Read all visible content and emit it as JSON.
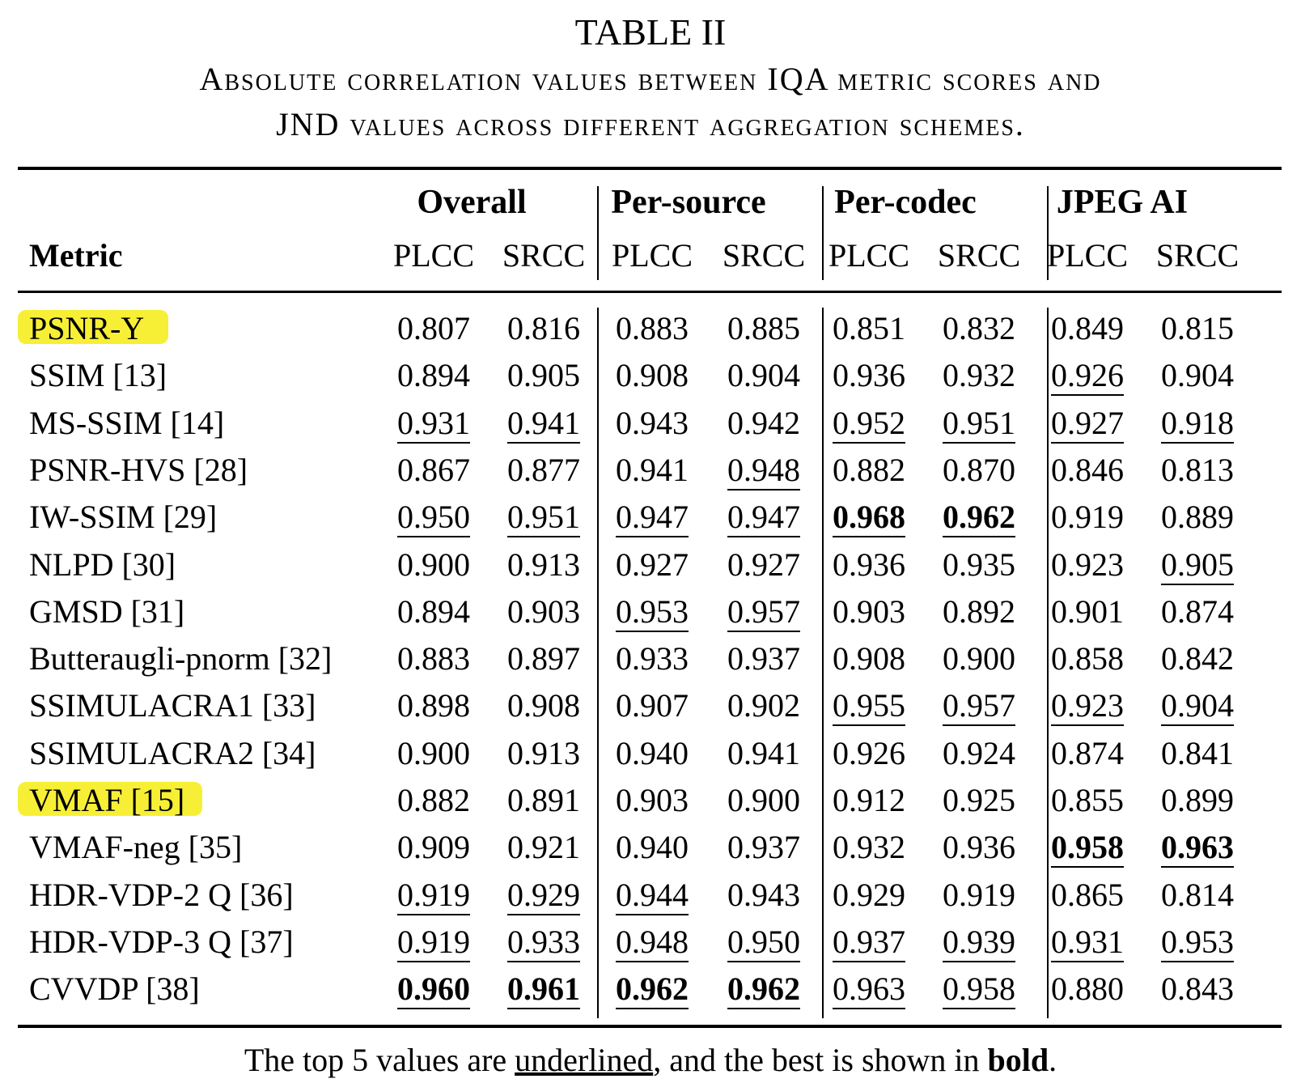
{
  "title": "TABLE II",
  "caption_line1": "Absolute correlation values between IQA metric scores and",
  "caption_line2": "JND values across different aggregation schemes.",
  "header": {
    "metric": "Metric",
    "groups": [
      "Overall",
      "Per-source",
      "Per-codec",
      "JPEG AI"
    ],
    "subcols": [
      "PLCC",
      "SRCC",
      "PLCC",
      "SRCC",
      "PLCC",
      "SRCC",
      "PLCC",
      "SRCC"
    ]
  },
  "rows": [
    {
      "metric": "PSNR-Y",
      "highlight": true,
      "values": [
        "0.807",
        "0.816",
        "0.883",
        "0.885",
        "0.851",
        "0.832",
        "0.849",
        "0.815"
      ],
      "underline": [
        0,
        0,
        0,
        0,
        0,
        0,
        0,
        0
      ],
      "bold": [
        0,
        0,
        0,
        0,
        0,
        0,
        0,
        0
      ]
    },
    {
      "metric": "SSIM [13]",
      "values": [
        "0.894",
        "0.905",
        "0.908",
        "0.904",
        "0.936",
        "0.932",
        "0.926",
        "0.904"
      ],
      "underline": [
        0,
        0,
        0,
        0,
        0,
        0,
        1,
        0
      ],
      "bold": [
        0,
        0,
        0,
        0,
        0,
        0,
        0,
        0
      ]
    },
    {
      "metric": "MS-SSIM [14]",
      "values": [
        "0.931",
        "0.941",
        "0.943",
        "0.942",
        "0.952",
        "0.951",
        "0.927",
        "0.918"
      ],
      "underline": [
        1,
        1,
        0,
        0,
        1,
        1,
        1,
        1
      ],
      "bold": [
        0,
        0,
        0,
        0,
        0,
        0,
        0,
        0
      ]
    },
    {
      "metric": "PSNR-HVS [28]",
      "values": [
        "0.867",
        "0.877",
        "0.941",
        "0.948",
        "0.882",
        "0.870",
        "0.846",
        "0.813"
      ],
      "underline": [
        0,
        0,
        0,
        1,
        0,
        0,
        0,
        0
      ],
      "bold": [
        0,
        0,
        0,
        0,
        0,
        0,
        0,
        0
      ]
    },
    {
      "metric": "IW-SSIM [29]",
      "values": [
        "0.950",
        "0.951",
        "0.947",
        "0.947",
        "0.968",
        "0.962",
        "0.919",
        "0.889"
      ],
      "underline": [
        1,
        1,
        1,
        1,
        1,
        1,
        0,
        0
      ],
      "bold": [
        0,
        0,
        0,
        0,
        1,
        1,
        0,
        0
      ]
    },
    {
      "metric": "NLPD [30]",
      "values": [
        "0.900",
        "0.913",
        "0.927",
        "0.927",
        "0.936",
        "0.935",
        "0.923",
        "0.905"
      ],
      "underline": [
        0,
        0,
        0,
        0,
        0,
        0,
        0,
        1
      ],
      "bold": [
        0,
        0,
        0,
        0,
        0,
        0,
        0,
        0
      ]
    },
    {
      "metric": "GMSD [31]",
      "values": [
        "0.894",
        "0.903",
        "0.953",
        "0.957",
        "0.903",
        "0.892",
        "0.901",
        "0.874"
      ],
      "underline": [
        0,
        0,
        1,
        1,
        0,
        0,
        0,
        0
      ],
      "bold": [
        0,
        0,
        0,
        0,
        0,
        0,
        0,
        0
      ]
    },
    {
      "metric": "Butteraugli-pnorm [32]",
      "values": [
        "0.883",
        "0.897",
        "0.933",
        "0.937",
        "0.908",
        "0.900",
        "0.858",
        "0.842"
      ],
      "underline": [
        0,
        0,
        0,
        0,
        0,
        0,
        0,
        0
      ],
      "bold": [
        0,
        0,
        0,
        0,
        0,
        0,
        0,
        0
      ]
    },
    {
      "metric": "SSIMULACRA1 [33]",
      "values": [
        "0.898",
        "0.908",
        "0.907",
        "0.902",
        "0.955",
        "0.957",
        "0.923",
        "0.904"
      ],
      "underline": [
        0,
        0,
        0,
        0,
        1,
        1,
        1,
        1
      ],
      "bold": [
        0,
        0,
        0,
        0,
        0,
        0,
        0,
        0
      ]
    },
    {
      "metric": "SSIMULACRA2 [34]",
      "values": [
        "0.900",
        "0.913",
        "0.940",
        "0.941",
        "0.926",
        "0.924",
        "0.874",
        "0.841"
      ],
      "underline": [
        0,
        0,
        0,
        0,
        0,
        0,
        0,
        0
      ],
      "bold": [
        0,
        0,
        0,
        0,
        0,
        0,
        0,
        0
      ]
    },
    {
      "metric": "VMAF [15]",
      "highlight": true,
      "values": [
        "0.882",
        "0.891",
        "0.903",
        "0.900",
        "0.912",
        "0.925",
        "0.855",
        "0.899"
      ],
      "underline": [
        0,
        0,
        0,
        0,
        0,
        0,
        0,
        0
      ],
      "bold": [
        0,
        0,
        0,
        0,
        0,
        0,
        0,
        0
      ]
    },
    {
      "metric": "VMAF-neg [35]",
      "values": [
        "0.909",
        "0.921",
        "0.940",
        "0.937",
        "0.932",
        "0.936",
        "0.958",
        "0.963"
      ],
      "underline": [
        0,
        0,
        0,
        0,
        0,
        0,
        1,
        1
      ],
      "bold": [
        0,
        0,
        0,
        0,
        0,
        0,
        1,
        1
      ]
    },
    {
      "metric": "HDR-VDP-2 Q [36]",
      "values": [
        "0.919",
        "0.929",
        "0.944",
        "0.943",
        "0.929",
        "0.919",
        "0.865",
        "0.814"
      ],
      "underline": [
        1,
        1,
        1,
        0,
        0,
        0,
        0,
        0
      ],
      "bold": [
        0,
        0,
        0,
        0,
        0,
        0,
        0,
        0
      ]
    },
    {
      "metric": "HDR-VDP-3 Q [37]",
      "values": [
        "0.919",
        "0.933",
        "0.948",
        "0.950",
        "0.937",
        "0.939",
        "0.931",
        "0.953"
      ],
      "underline": [
        1,
        1,
        1,
        1,
        1,
        1,
        1,
        1
      ],
      "bold": [
        0,
        0,
        0,
        0,
        0,
        0,
        0,
        0
      ]
    },
    {
      "metric": "CVVDP [38]",
      "values": [
        "0.960",
        "0.961",
        "0.962",
        "0.962",
        "0.963",
        "0.958",
        "0.880",
        "0.843"
      ],
      "underline": [
        1,
        1,
        1,
        1,
        1,
        1,
        0,
        0
      ],
      "bold": [
        1,
        1,
        1,
        1,
        0,
        0,
        0,
        0
      ]
    }
  ],
  "footnote": {
    "part1": "The top 5 values are ",
    "underlined_word": "underlined",
    "part2": ", and the best is shown in ",
    "bold_word": "bold",
    "part3": "."
  },
  "highlight_color": "#f7ee2a"
}
